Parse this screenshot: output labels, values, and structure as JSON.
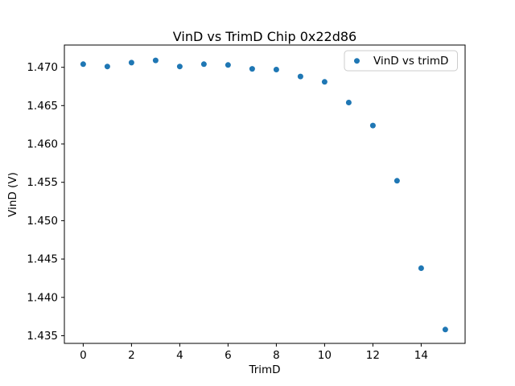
{
  "figure": {
    "background_color": "#ffffff",
    "axis_color": "#000000",
    "legend_border_color": "#cccccc"
  },
  "chart_data": {
    "type": "scatter",
    "title": "VinD vs TrimD Chip 0x22d86",
    "xlabel": "TrimD",
    "ylabel": "VinD (V)",
    "x": [
      0,
      1,
      2,
      3,
      4,
      5,
      6,
      7,
      8,
      9,
      10,
      11,
      12,
      13,
      14,
      15
    ],
    "series": [
      {
        "name": "VinD vs trimD",
        "values": [
          1.4704,
          1.4701,
          1.4706,
          1.4709,
          1.4701,
          1.4704,
          1.4703,
          1.4698,
          1.4697,
          1.4688,
          1.4681,
          1.4654,
          1.4624,
          1.4552,
          1.4438,
          1.4358
        ]
      }
    ],
    "marker_color": "#1f77b4",
    "xticks": [
      0,
      2,
      4,
      6,
      8,
      10,
      12,
      14
    ],
    "yticks": [
      1.435,
      1.44,
      1.445,
      1.45,
      1.455,
      1.46,
      1.465,
      1.47
    ],
    "xlim": [
      -0.78,
      15.82
    ],
    "ylim": [
      1.434,
      1.4729
    ],
    "grid": false,
    "legend_position": "upper right"
  }
}
